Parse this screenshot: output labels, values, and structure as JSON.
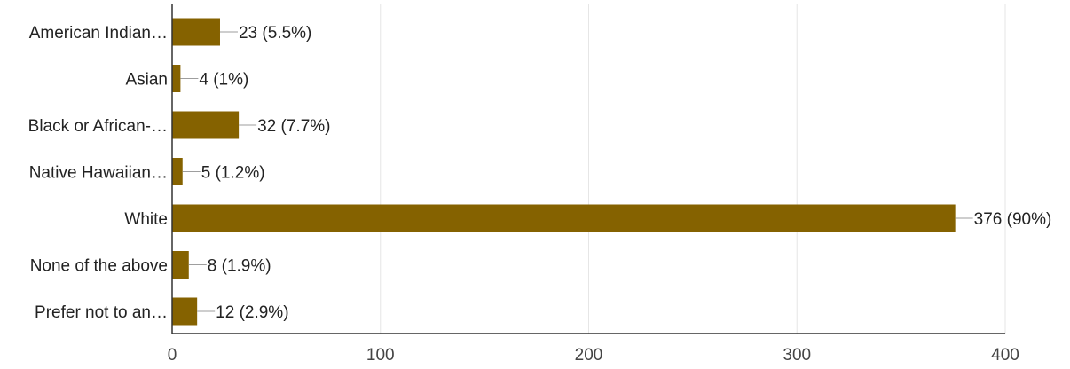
{
  "chart_data": {
    "type": "bar",
    "orientation": "horizontal",
    "categories": [
      "American Indian…",
      "Asian",
      "Black or African-…",
      "Native Hawaiian…",
      "White",
      "None of the above",
      "Prefer not to an…"
    ],
    "values": [
      23,
      4,
      32,
      5,
      376,
      8,
      12
    ],
    "data_labels": [
      "23 (5.5%)",
      "4 (1%)",
      "32 (7.7%)",
      "5 (1.2%)",
      "376 (90%)",
      "8 (1.9%)",
      "12 (2.9%)"
    ],
    "xlim": [
      0,
      400
    ],
    "x_ticks": [
      0,
      100,
      200,
      300,
      400
    ],
    "x_tick_labels": [
      "0",
      "100",
      "200",
      "300",
      "400"
    ],
    "grid": true,
    "legend": "none",
    "bar_color": "#856200",
    "grid_color": "#e6e6e6",
    "axis_color": "#333333",
    "leader_color": "#9e9e9e"
  }
}
